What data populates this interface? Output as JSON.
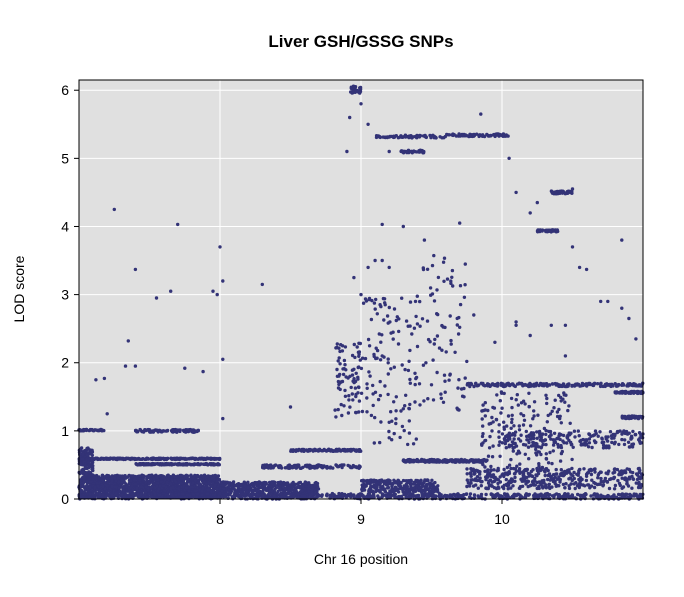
{
  "chart_data": {
    "type": "scatter",
    "title": "Liver GSH/GSSG SNPs",
    "xlabel": "Chr 16 position",
    "ylabel": "LOD score",
    "xlim": [
      7.0,
      11.0
    ],
    "ylim": [
      0,
      6.15
    ],
    "x_ticks": [
      8,
      9,
      10
    ],
    "y_ticks": [
      0,
      1,
      2,
      3,
      4,
      5,
      6
    ],
    "grid": true,
    "colors": {
      "panel_background": "#e0e0e0",
      "grid": "#ffffff",
      "points": "#333377",
      "frame": "#000000"
    },
    "series": [
      {
        "bands": [
          {
            "x": [
              7.0,
              8.0
            ],
            "y": [
              0.02,
              0.35
            ],
            "n": 1400
          },
          {
            "x": [
              7.0,
              7.1
            ],
            "y": [
              0.35,
              0.75
            ],
            "n": 120
          },
          {
            "x": [
              7.0,
              7.18
            ],
            "y": [
              1.0,
              1.02
            ],
            "n": 40
          },
          {
            "x": [
              7.0,
              8.0
            ],
            "y": [
              0.58,
              0.6
            ],
            "n": 250
          },
          {
            "x": [
              7.4,
              8.0
            ],
            "y": [
              0.5,
              0.52
            ],
            "n": 150
          },
          {
            "x": [
              7.4,
              7.85
            ],
            "y": [
              0.98,
              1.02
            ],
            "n": 90
          },
          {
            "x": [
              7.1,
              7.8
            ],
            "y": [
              0.15,
              0.2
            ],
            "n": 100
          },
          {
            "x": [
              8.0,
              8.7
            ],
            "y": [
              0.05,
              0.25
            ],
            "n": 450
          },
          {
            "x": [
              8.5,
              9.0
            ],
            "y": [
              0.7,
              0.73
            ],
            "n": 120
          },
          {
            "x": [
              8.3,
              9.0
            ],
            "y": [
              0.45,
              0.5
            ],
            "n": 120
          },
          {
            "x": [
              8.8,
              9.0
            ],
            "y": [
              1.2,
              2.3
            ],
            "n": 80
          },
          {
            "x": [
              8.92,
              9.0
            ],
            "y": [
              5.95,
              6.06
            ],
            "n": 25
          },
          {
            "x": [
              9.0,
              9.55
            ],
            "y": [
              0.1,
              0.28
            ],
            "n": 250
          },
          {
            "x": [
              9.3,
              9.9
            ],
            "y": [
              0.54,
              0.58
            ],
            "n": 180
          },
          {
            "x": [
              9.1,
              9.6
            ],
            "y": [
              5.3,
              5.34
            ],
            "n": 60
          },
          {
            "x": [
              9.6,
              10.05
            ],
            "y": [
              5.32,
              5.36
            ],
            "n": 70
          },
          {
            "x": [
              9.28,
              9.45
            ],
            "y": [
              5.08,
              5.12
            ],
            "n": 30
          },
          {
            "x": [
              9.75,
              11.0
            ],
            "y": [
              1.65,
              1.7
            ],
            "n": 220
          },
          {
            "x": [
              10.0,
              11.0
            ],
            "y": [
              0.75,
              1.0
            ],
            "n": 200
          },
          {
            "x": [
              9.75,
              11.0
            ],
            "y": [
              0.15,
              0.45
            ],
            "n": 400
          },
          {
            "x": [
              10.25,
              10.4
            ],
            "y": [
              3.92,
              3.95
            ],
            "n": 40
          },
          {
            "x": [
              10.35,
              10.5
            ],
            "y": [
              4.48,
              4.52
            ],
            "n": 40
          },
          {
            "x": [
              10.8,
              11.0
            ],
            "y": [
              1.55,
              1.58
            ],
            "n": 60
          },
          {
            "x": [
              10.85,
              11.0
            ],
            "y": [
              1.18,
              1.22
            ],
            "n": 50
          },
          {
            "x": [
              7.0,
              11.0
            ],
            "y": [
              0.0,
              0.08
            ],
            "n": 800
          },
          {
            "x": [
              9.0,
              9.4
            ],
            "y": [
              0.8,
              3.0
            ],
            "n": 120
          },
          {
            "x": [
              9.4,
              9.75
            ],
            "y": [
              1.3,
              3.6
            ],
            "n": 80
          },
          {
            "x": [
              9.85,
              10.5
            ],
            "y": [
              0.45,
              1.6
            ],
            "n": 160
          }
        ],
        "points": [
          [
            7.25,
            4.25
          ],
          [
            7.7,
            4.03
          ],
          [
            7.4,
            3.37
          ],
          [
            7.55,
            2.95
          ],
          [
            7.65,
            3.05
          ],
          [
            7.35,
            2.32
          ],
          [
            7.4,
            1.95
          ],
          [
            7.33,
            1.95
          ],
          [
            7.75,
            1.92
          ],
          [
            7.95,
            3.05
          ],
          [
            7.98,
            3.0
          ],
          [
            8.02,
            3.2
          ],
          [
            8.0,
            3.7
          ],
          [
            8.02,
            2.05
          ],
          [
            8.3,
            3.15
          ],
          [
            7.88,
            1.87
          ],
          [
            7.12,
            1.75
          ],
          [
            7.18,
            1.77
          ],
          [
            7.2,
            1.25
          ],
          [
            8.02,
            1.18
          ],
          [
            8.5,
            1.35
          ],
          [
            8.9,
            5.1
          ],
          [
            8.92,
            5.6
          ],
          [
            9.0,
            5.8
          ],
          [
            9.05,
            5.5
          ],
          [
            9.0,
            3.0
          ],
          [
            9.05,
            3.4
          ],
          [
            8.95,
            3.25
          ],
          [
            9.15,
            4.03
          ],
          [
            9.1,
            3.5
          ],
          [
            9.15,
            3.5
          ],
          [
            9.2,
            3.4
          ],
          [
            9.3,
            4.0
          ],
          [
            9.45,
            3.8
          ],
          [
            9.7,
            4.05
          ],
          [
            9.85,
            5.65
          ],
          [
            10.05,
            5.0
          ],
          [
            10.1,
            4.5
          ],
          [
            10.2,
            4.2
          ],
          [
            10.25,
            4.35
          ],
          [
            10.5,
            4.55
          ],
          [
            10.5,
            3.7
          ],
          [
            10.55,
            3.4
          ],
          [
            10.6,
            3.37
          ],
          [
            10.7,
            2.9
          ],
          [
            10.75,
            2.9
          ],
          [
            10.85,
            2.8
          ],
          [
            10.85,
            3.8
          ],
          [
            10.9,
            2.65
          ],
          [
            10.95,
            2.35
          ],
          [
            10.1,
            2.55
          ],
          [
            10.2,
            2.4
          ],
          [
            10.35,
            2.55
          ],
          [
            10.45,
            2.55
          ],
          [
            10.45,
            2.1
          ],
          [
            9.95,
            2.3
          ],
          [
            9.8,
            2.7
          ],
          [
            9.7,
            2.52
          ],
          [
            9.75,
            2.02
          ],
          [
            9.4,
            2.57
          ],
          [
            9.25,
            2.62
          ],
          [
            9.15,
            2.1
          ],
          [
            9.25,
            1.5
          ],
          [
            9.35,
            1.7
          ],
          [
            9.2,
            5.1
          ],
          [
            9.3,
            5.1
          ],
          [
            10.1,
            2.6
          ]
        ]
      }
    ]
  }
}
